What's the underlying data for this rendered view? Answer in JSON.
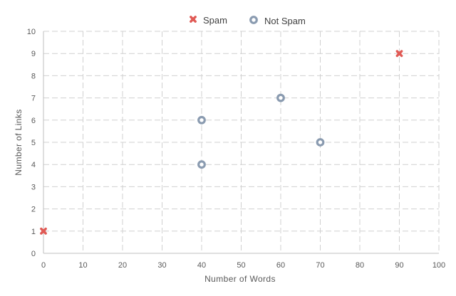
{
  "chart_data": {
    "type": "scatter",
    "xlabel": "Number of Words",
    "ylabel": "Number of Links",
    "xlim": [
      0,
      100
    ],
    "ylim": [
      0,
      10
    ],
    "x_ticks": [
      "0",
      "10",
      "20",
      "30",
      "40",
      "50",
      "60",
      "70",
      "80",
      "90",
      "100"
    ],
    "y_ticks": [
      "0",
      "1",
      "2",
      "3",
      "4",
      "5",
      "6",
      "7",
      "8",
      "9",
      "10"
    ],
    "grid": true,
    "legend_position": "top-center",
    "series": [
      {
        "name": "Spam",
        "color": "#e05a55",
        "marker": "x-filled",
        "points": [
          {
            "x": 0,
            "y": 1
          },
          {
            "x": 90,
            "y": 9
          }
        ]
      },
      {
        "name": "Not Spam",
        "color": "#8a9bb0",
        "marker": "ring",
        "points": [
          {
            "x": 40,
            "y": 4
          },
          {
            "x": 40,
            "y": 6
          },
          {
            "x": 60,
            "y": 7
          },
          {
            "x": 70,
            "y": 5
          }
        ]
      }
    ]
  }
}
